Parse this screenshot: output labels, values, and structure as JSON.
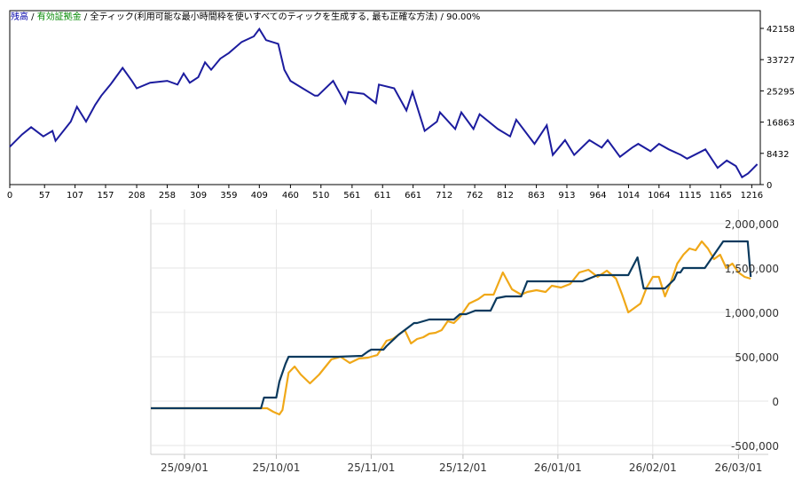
{
  "colors": {
    "balance_label": "#0000aa",
    "equity_label": "#008800",
    "top_line": "#1c1c9e",
    "bottom_balance": "#0b3a5e",
    "bottom_equity": "#f0a818",
    "grid": "#e4e4e4"
  },
  "chart_data": [
    {
      "type": "line",
      "legend": {
        "balance": "残高",
        "sep1": " / ",
        "equity": "有効証拠金",
        "sep2": " / ",
        "description": "全ティック(利用可能な最小時間枠を使いすべてのティックを生成する, 最も正確な方法)",
        "sep3": " / ",
        "quality": "90.00%"
      },
      "x_ticks": [
        "0",
        "57",
        "107",
        "157",
        "208",
        "258",
        "309",
        "359",
        "409",
        "460",
        "510",
        "561",
        "611",
        "661",
        "712",
        "762",
        "812",
        "863",
        "913",
        "964",
        "1014",
        "1064",
        "1115",
        "1165",
        "1216"
      ],
      "y_ticks": [
        "42158",
        "33727",
        "25295",
        "16863",
        "8432",
        "0"
      ],
      "ylim": [
        0,
        42158
      ],
      "xlim": [
        0,
        1230
      ],
      "series": [
        {
          "x": [
            0,
            20,
            35,
            55,
            70,
            75,
            100,
            110,
            125,
            140,
            150,
            165,
            185,
            200,
            208,
            230,
            258,
            275,
            285,
            295,
            309,
            320,
            330,
            345,
            359,
            380,
            400,
            409,
            420,
            440,
            450,
            460,
            480,
            500,
            505,
            530,
            550,
            555,
            580,
            600,
            605,
            630,
            650,
            660,
            680,
            700,
            705,
            730,
            740,
            760,
            770,
            800,
            820,
            830,
            860,
            880,
            890,
            900,
            910,
            925,
            950,
            970,
            980,
            1000,
            1020,
            1030,
            1050,
            1064,
            1080,
            1100,
            1110,
            1140,
            1160,
            1175,
            1190,
            1200,
            1210,
            1216,
            1225
          ],
          "y": [
            10200,
            13500,
            15500,
            13000,
            14500,
            11800,
            17000,
            21000,
            17000,
            21500,
            24000,
            27000,
            31500,
            28000,
            26000,
            27500,
            28000,
            27000,
            30000,
            27500,
            29000,
            33000,
            31000,
            34000,
            35500,
            38500,
            40000,
            42000,
            39000,
            38000,
            31000,
            28000,
            26000,
            24000,
            24000,
            28000,
            22000,
            25000,
            24500,
            22000,
            27000,
            26000,
            20000,
            25000,
            14500,
            17000,
            19500,
            15000,
            19500,
            15000,
            19000,
            15000,
            13000,
            17500,
            11000,
            16000,
            8000,
            10000,
            12000,
            8000,
            12000,
            10000,
            12000,
            7500,
            10000,
            11000,
            9000,
            11000,
            9500,
            8000,
            7000,
            9500,
            4500,
            6500,
            5000,
            2000,
            3000,
            4000,
            5500
          ]
        }
      ]
    },
    {
      "type": "line",
      "x_ticks": [
        "25/09/01",
        "25/10/01",
        "25/11/01",
        "25/12/01",
        "26/01/01",
        "26/02/01",
        "26/03/01"
      ],
      "x_tick_days": [
        0,
        30,
        61,
        91,
        122,
        153,
        181
      ],
      "xlim": [
        -11,
        189
      ],
      "y_ticks": [
        "2,000,000",
        "1,500,000",
        "1,000,000",
        "500,000",
        "0",
        "-500,000"
      ],
      "y_tick_values": [
        2000000,
        1500000,
        1000000,
        500000,
        0,
        -500000
      ],
      "ylim": [
        -600000,
        2100000
      ],
      "series": [
        {
          "name": "",
          "color_key": "bottom_balance",
          "x": [
            -11,
            25,
            26,
            30,
            31,
            33,
            34,
            40,
            43,
            50,
            58,
            60,
            61,
            65,
            66,
            70,
            75,
            76,
            80,
            85,
            88,
            90,
            92,
            95,
            100,
            102,
            105,
            110,
            112,
            118,
            130,
            135,
            136,
            140,
            142,
            145,
            148,
            150,
            151,
            155,
            157,
            160,
            161,
            162,
            163,
            165,
            170,
            176,
            178,
            184,
            185
          ],
          "y": [
            -80000,
            -80000,
            40000,
            40000,
            220000,
            420000,
            500000,
            500000,
            500000,
            500000,
            510000,
            560000,
            580000,
            580000,
            620000,
            750000,
            880000,
            880000,
            920000,
            920000,
            920000,
            980000,
            980000,
            1020000,
            1020000,
            1160000,
            1180000,
            1180000,
            1350000,
            1350000,
            1350000,
            1420000,
            1420000,
            1420000,
            1420000,
            1420000,
            1620000,
            1270000,
            1270000,
            1270000,
            1270000,
            1370000,
            1450000,
            1450000,
            1500000,
            1500000,
            1500000,
            1800000,
            1800000,
            1800000,
            1400000
          ]
        },
        {
          "name": "",
          "color_key": "bottom_equity",
          "x": [
            -11,
            25,
            27,
            29,
            31,
            32,
            34,
            36,
            38,
            41,
            44,
            48,
            51,
            54,
            57,
            60,
            63,
            66,
            68,
            70,
            72,
            74,
            76,
            78,
            80,
            82,
            84,
            86,
            88,
            90,
            93,
            96,
            98,
            101,
            104,
            107,
            110,
            112,
            115,
            118,
            120,
            123,
            126,
            129,
            132,
            135,
            138,
            141,
            143,
            145,
            147,
            149,
            151,
            153,
            155,
            157,
            159,
            161,
            163,
            165,
            167,
            169,
            171,
            173,
            175,
            177,
            179,
            181,
            183,
            185
          ],
          "y": [
            -80000,
            -80000,
            -80000,
            -120000,
            -150000,
            -100000,
            320000,
            390000,
            300000,
            200000,
            300000,
            470000,
            500000,
            430000,
            480000,
            490000,
            520000,
            680000,
            700000,
            750000,
            800000,
            650000,
            700000,
            720000,
            760000,
            770000,
            800000,
            900000,
            880000,
            950000,
            1100000,
            1150000,
            1200000,
            1200000,
            1450000,
            1260000,
            1200000,
            1230000,
            1250000,
            1230000,
            1300000,
            1280000,
            1320000,
            1450000,
            1480000,
            1400000,
            1470000,
            1380000,
            1200000,
            1000000,
            1050000,
            1100000,
            1280000,
            1400000,
            1400000,
            1180000,
            1350000,
            1550000,
            1650000,
            1720000,
            1700000,
            1800000,
            1720000,
            1600000,
            1650000,
            1500000,
            1550000,
            1450000,
            1400000,
            1380000
          ]
        }
      ]
    }
  ]
}
